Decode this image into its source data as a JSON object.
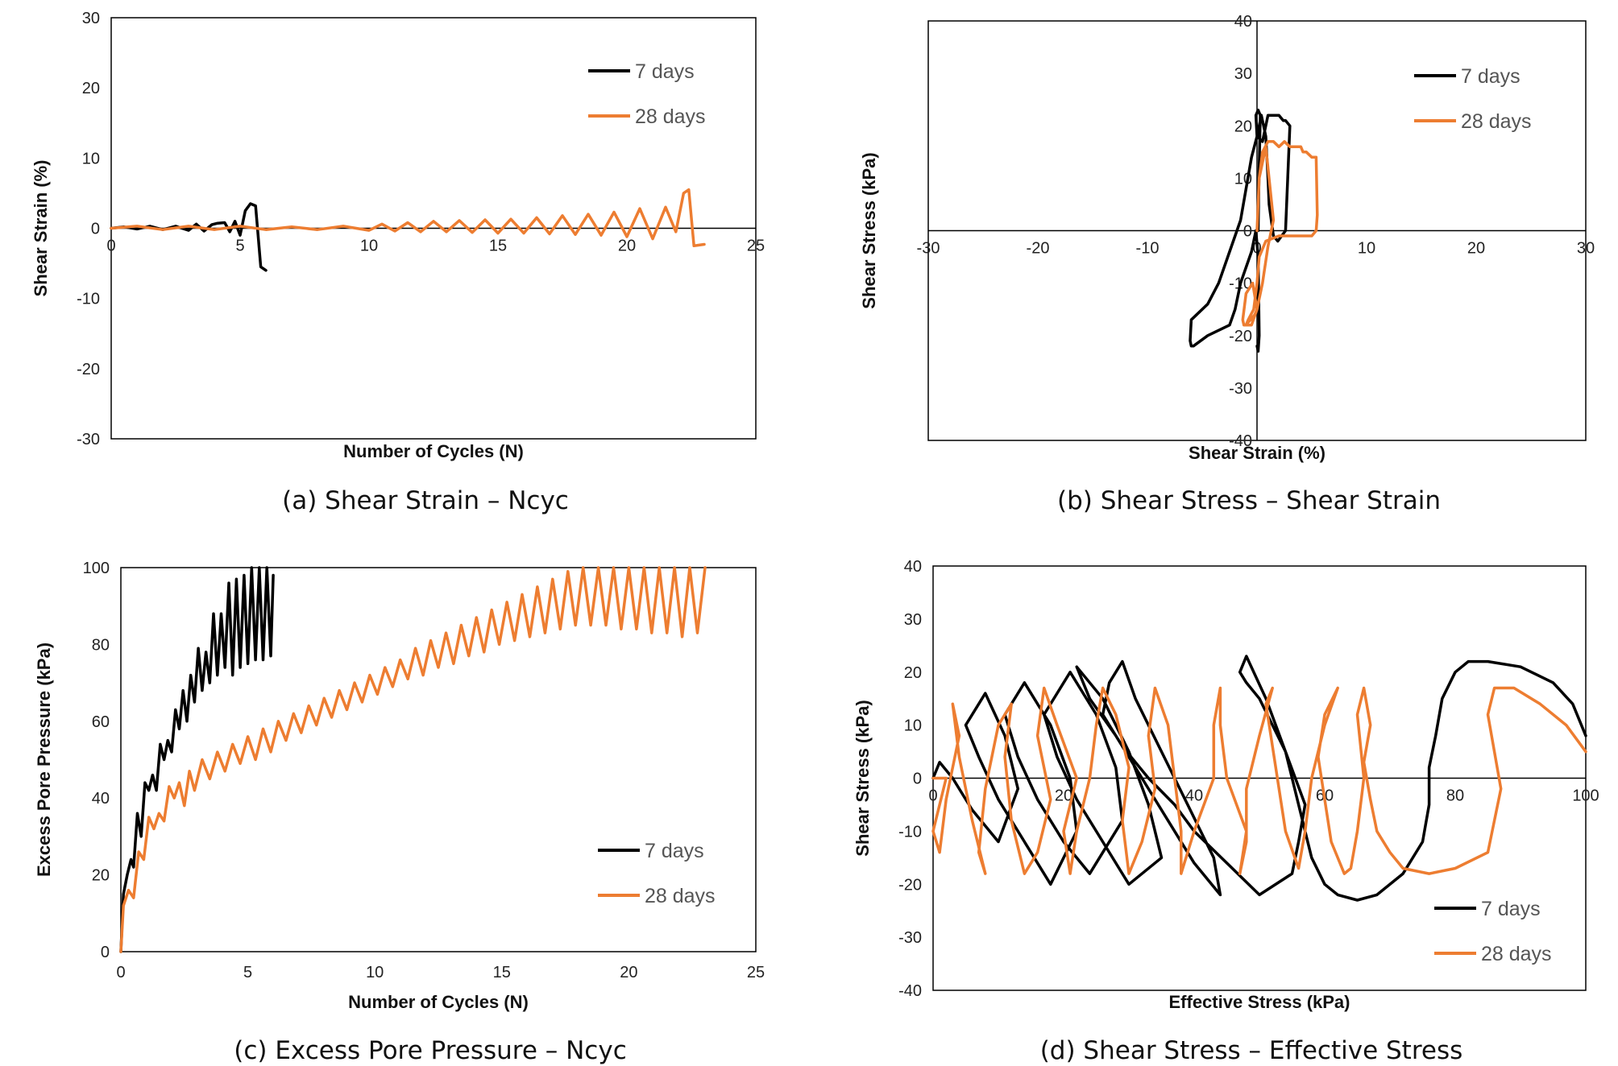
{
  "colors": {
    "seven_days": "#000000",
    "twenty_eight_days": "#ED7D31",
    "frame": "#000000"
  },
  "chart_data": [
    {
      "id": "a",
      "type": "line",
      "caption": "(a) Shear Strain – Ncyc",
      "xlabel": "Number of Cycles (N)",
      "ylabel": "Shear Strain (%)",
      "xlim": [
        0,
        25
      ],
      "ylim": [
        -30,
        30
      ],
      "xticks": [
        0,
        5,
        10,
        15,
        20,
        25
      ],
      "yticks": [
        -30,
        -20,
        -10,
        0,
        10,
        20,
        30
      ],
      "legend": "top-right",
      "series": [
        {
          "name": "7 days",
          "color": "#000000",
          "x": [
            0,
            0.5,
            1,
            1.5,
            2,
            2.5,
            3,
            3.3,
            3.6,
            3.9,
            4.1,
            4.4,
            4.6,
            4.8,
            5.0,
            5.2,
            5.4,
            5.6,
            5.8,
            6.0
          ],
          "y": [
            0,
            0.2,
            -0.1,
            0.3,
            -0.2,
            0.3,
            -0.3,
            0.6,
            -0.4,
            0.5,
            0.7,
            0.8,
            -0.5,
            1.0,
            -1.0,
            2.5,
            3.5,
            3.2,
            -5.5,
            -6.0
          ]
        },
        {
          "name": "28 days",
          "color": "#ED7D31",
          "x": [
            0,
            1,
            2,
            3,
            4,
            5,
            6,
            7,
            8,
            9,
            10,
            10.5,
            11,
            11.5,
            12,
            12.5,
            13,
            13.5,
            14,
            14.5,
            15,
            15.5,
            16,
            16.5,
            17,
            17.5,
            18,
            18.5,
            19,
            19.5,
            20,
            20.5,
            21,
            21.5,
            21.9,
            22.2,
            22.4,
            22.6,
            22.8,
            23.0
          ],
          "y": [
            0,
            0.3,
            -0.2,
            0.3,
            -0.2,
            0.3,
            -0.2,
            0.2,
            -0.2,
            0.3,
            -0.3,
            0.6,
            -0.4,
            0.8,
            -0.5,
            1.0,
            -0.5,
            1.1,
            -0.6,
            1.2,
            -0.7,
            1.3,
            -0.7,
            1.5,
            -0.8,
            1.8,
            -0.9,
            2.0,
            -1.0,
            2.3,
            -1.2,
            2.8,
            -1.5,
            3.0,
            -0.5,
            5.0,
            5.5,
            -2.5,
            -2.4,
            -2.3
          ]
        }
      ]
    },
    {
      "id": "b",
      "type": "line",
      "caption": "(b) Shear Stress – Shear Strain",
      "xlabel": "Shear Strain (%)",
      "ylabel": "Shear Stress (kPa)",
      "xlim": [
        -30,
        30
      ],
      "ylim": [
        -40,
        40
      ],
      "xticks": [
        -30,
        -20,
        -10,
        0,
        10,
        20,
        30
      ],
      "yticks": [
        -40,
        -30,
        -20,
        -10,
        0,
        10,
        20,
        30,
        40
      ],
      "legend": "top-right",
      "series": [
        {
          "name": "7 days",
          "color": "#000000",
          "x": [
            0.1,
            0.2,
            0.3,
            0.1,
            -0.1,
            0,
            0.5,
            1.0,
            2.0,
            2.4,
            2.6,
            3.0,
            2.6,
            1.9,
            1.5,
            1.1,
            1.0,
            0.8,
            0.6,
            0.4,
            0.2,
            0,
            -0.5,
            -1.5,
            -2.5,
            -3.5,
            -4.5,
            -5.5,
            -6.0,
            -6.1,
            -6.0,
            -5.8,
            -4.5,
            -2.5,
            -2.0,
            -1.5,
            -0.5,
            -0.1,
            0.1,
            0.2,
            0.1,
            0.0
          ],
          "y": [
            0,
            12,
            22,
            23,
            22,
            18,
            17,
            22,
            22,
            21,
            21,
            20,
            0,
            -2,
            -1,
            5,
            10,
            18,
            20,
            22,
            20,
            18,
            14,
            2,
            -4,
            -10,
            -14,
            -16,
            -17,
            -21,
            -22,
            -22,
            -20,
            -18,
            -15,
            -10,
            -4,
            0,
            -5,
            -20,
            -23,
            -22
          ]
        },
        {
          "name": "28 days",
          "color": "#ED7D31",
          "x": [
            0,
            0.2,
            0.5,
            1.0,
            1.5,
            2.0,
            2.5,
            3.0,
            3.5,
            4.0,
            4.2,
            4.5,
            5.0,
            5.4,
            5.5,
            5.4,
            5.0,
            3.5,
            2.0,
            0.8,
            0.2,
            0,
            -0.3,
            -0.8,
            -1.0,
            -0.6,
            -0.2,
            0,
            -0.4,
            -1.0,
            -1.3,
            -1.2,
            -0.5,
            0,
            0.5,
            1.0,
            1.5,
            0.8,
            0.2,
            0
          ],
          "y": [
            0,
            10,
            15,
            17,
            17,
            16,
            17,
            16,
            16,
            16,
            15,
            15,
            14,
            14,
            3,
            0,
            -1,
            -1,
            -1,
            -2,
            -5,
            -10,
            -15,
            -17,
            -18,
            -17,
            -16,
            -15,
            -10,
            -12,
            -17,
            -18,
            -18,
            -15,
            -10,
            -3,
            2,
            16,
            10,
            0
          ]
        }
      ]
    },
    {
      "id": "c",
      "type": "line",
      "caption": "(c) Excess Pore Pressure – Ncyc",
      "xlabel": "Number of Cycles (N)",
      "ylabel": "Excess Pore Pressure (kPa)",
      "xlim": [
        0,
        25
      ],
      "ylim": [
        0,
        100
      ],
      "xticks": [
        0,
        5,
        10,
        15,
        20,
        25
      ],
      "yticks": [
        0,
        20,
        40,
        60,
        80,
        100
      ],
      "legend": "bottom-right",
      "series": [
        {
          "name": "7 days",
          "color": "#000000",
          "x": [
            0,
            0.1,
            0.25,
            0.4,
            0.5,
            0.65,
            0.8,
            0.95,
            1.1,
            1.25,
            1.4,
            1.55,
            1.7,
            1.85,
            2.0,
            2.15,
            2.3,
            2.45,
            2.6,
            2.75,
            2.9,
            3.05,
            3.2,
            3.35,
            3.5,
            3.65,
            3.8,
            3.95,
            4.1,
            4.25,
            4.4,
            4.55,
            4.7,
            4.85,
            5.0,
            5.15,
            5.3,
            5.45,
            5.6,
            5.75,
            5.9,
            6.0
          ],
          "y": [
            0,
            15,
            20,
            24,
            22,
            36,
            30,
            44,
            42,
            46,
            42,
            54,
            50,
            55,
            52,
            63,
            58,
            68,
            60,
            72,
            65,
            79,
            68,
            78,
            70,
            88,
            72,
            88,
            74,
            96,
            72,
            97,
            74,
            98,
            75,
            100,
            76,
            100,
            76,
            100,
            77,
            98
          ]
        },
        {
          "name": "28 days",
          "color": "#ED7D31",
          "x": [
            0,
            0.1,
            0.3,
            0.5,
            0.7,
            0.9,
            1.1,
            1.3,
            1.5,
            1.7,
            1.9,
            2.1,
            2.3,
            2.5,
            2.7,
            2.9,
            3.2,
            3.5,
            3.8,
            4.1,
            4.4,
            4.7,
            5.0,
            5.3,
            5.6,
            5.9,
            6.2,
            6.5,
            6.8,
            7.1,
            7.4,
            7.7,
            8.0,
            8.3,
            8.6,
            8.9,
            9.2,
            9.5,
            9.8,
            10.1,
            10.4,
            10.7,
            11.0,
            11.3,
            11.6,
            11.9,
            12.2,
            12.5,
            12.8,
            13.1,
            13.4,
            13.7,
            14.0,
            14.3,
            14.6,
            14.9,
            15.2,
            15.5,
            15.8,
            16.1,
            16.4,
            16.7,
            17.0,
            17.3,
            17.6,
            17.9,
            18.2,
            18.5,
            18.8,
            19.1,
            19.4,
            19.7,
            20.0,
            20.3,
            20.6,
            20.9,
            21.2,
            21.5,
            21.8,
            22.1,
            22.4,
            22.7,
            23.0
          ],
          "y": [
            0,
            12,
            16,
            14,
            26,
            24,
            35,
            32,
            36,
            34,
            43,
            40,
            44,
            38,
            47,
            42,
            50,
            45,
            52,
            47,
            54,
            49,
            56,
            50,
            58,
            52,
            60,
            55,
            62,
            57,
            64,
            59,
            66,
            61,
            68,
            63,
            70,
            65,
            72,
            67,
            74,
            69,
            76,
            71,
            79,
            72,
            81,
            74,
            83,
            75,
            85,
            77,
            87,
            78,
            89,
            80,
            91,
            81,
            93,
            82,
            95,
            83,
            97,
            84,
            99,
            85,
            100,
            85,
            100,
            85,
            100,
            84,
            100,
            84,
            100,
            83,
            100,
            83,
            100,
            82,
            100,
            83,
            100
          ]
        }
      ]
    },
    {
      "id": "d",
      "type": "line",
      "caption": "(d) Shear Stress – Effective Stress",
      "xlabel": "Effective Stress (kPa)",
      "ylabel": "Shear Stress (kPa)",
      "xlim": [
        0,
        100
      ],
      "ylim": [
        -40,
        40
      ],
      "xticks": [
        0,
        20,
        40,
        60,
        80,
        100
      ],
      "yticks": [
        -40,
        -30,
        -20,
        -10,
        0,
        10,
        20,
        30,
        40
      ],
      "legend": "bottom-right",
      "series": [
        {
          "name": "7 days",
          "color": "#000000",
          "x": [
            100,
            98,
            95,
            90,
            85,
            82,
            80,
            78,
            77,
            76,
            76,
            75,
            72,
            68,
            65,
            62,
            60,
            58,
            57,
            56,
            55,
            54,
            52,
            50,
            48,
            47,
            48,
            51,
            54,
            57,
            56,
            55,
            50,
            45,
            40,
            37,
            33,
            29,
            26,
            27,
            29,
            31,
            35,
            39,
            43,
            44,
            40,
            36,
            32,
            28,
            24,
            22,
            26,
            30,
            33,
            35,
            30,
            26,
            22,
            19,
            17,
            21,
            25,
            28,
            29,
            24,
            20,
            16,
            13,
            11,
            14,
            18,
            21,
            22,
            18,
            14,
            10,
            7,
            5,
            8,
            11,
            13,
            10,
            6,
            3,
            1,
            0
          ],
          "y": [
            8,
            14,
            18,
            21,
            22,
            22,
            20,
            15,
            8,
            2,
            -5,
            -12,
            -18,
            -22,
            -23,
            -22,
            -20,
            -15,
            -10,
            -5,
            0,
            5,
            10,
            15,
            18,
            20,
            23,
            15,
            5,
            -5,
            -12,
            -18,
            -22,
            -16,
            -10,
            -5,
            0,
            6,
            12,
            18,
            22,
            15,
            5,
            -5,
            -15,
            -22,
            -16,
            -8,
            0,
            8,
            15,
            21,
            15,
            5,
            -5,
            -15,
            -20,
            -12,
            -4,
            4,
            12,
            20,
            12,
            2,
            -8,
            -18,
            -12,
            -4,
            4,
            12,
            18,
            10,
            0,
            -10,
            -20,
            -12,
            -4,
            4,
            10,
            16,
            8,
            -2,
            -12,
            -6,
            0,
            3,
            0
          ]
        },
        {
          "name": "28 days",
          "color": "#ED7D31",
          "x": [
            100,
            97,
            93,
            89,
            86,
            85,
            86,
            87,
            86,
            85,
            80,
            76,
            72,
            70,
            68,
            67,
            66,
            67,
            66,
            65,
            66,
            65,
            64,
            63,
            61,
            60,
            59,
            60,
            62,
            60,
            58,
            57,
            56,
            54,
            53,
            52,
            51,
            52,
            50,
            48,
            48,
            47,
            48,
            45,
            44,
            44,
            43,
            43,
            40,
            38,
            38,
            37,
            36,
            34,
            33,
            34,
            32,
            30,
            29,
            30,
            28,
            26,
            25,
            24,
            22,
            21,
            20,
            22,
            19,
            17,
            16,
            18,
            16,
            14,
            12,
            11,
            12,
            10,
            8,
            7,
            8,
            6,
            4,
            3,
            4,
            2,
            1,
            0,
            2,
            0
          ],
          "y": [
            5,
            10,
            14,
            17,
            17,
            12,
            5,
            -2,
            -8,
            -14,
            -17,
            -18,
            -17,
            -14,
            -10,
            -4,
            3,
            10,
            17,
            12,
            0,
            -10,
            -17,
            -18,
            -12,
            -4,
            4,
            12,
            17,
            10,
            0,
            -10,
            -17,
            -10,
            -2,
            6,
            14,
            17,
            8,
            -2,
            -12,
            -18,
            -10,
            0,
            10,
            17,
            10,
            0,
            -10,
            -18,
            -10,
            0,
            10,
            17,
            8,
            -2,
            -12,
            -18,
            -8,
            2,
            12,
            17,
            10,
            0,
            -10,
            -18,
            -10,
            0,
            10,
            17,
            8,
            -4,
            -14,
            -18,
            -8,
            4,
            14,
            10,
            -2,
            -14,
            -18,
            -8,
            4,
            14,
            8,
            -4,
            -14,
            -10,
            0,
            0
          ]
        }
      ]
    }
  ]
}
